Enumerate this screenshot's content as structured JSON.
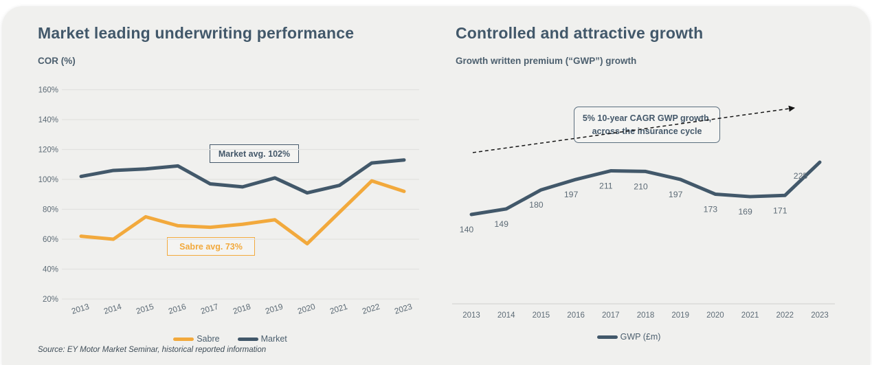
{
  "colors": {
    "slate": "#42586a",
    "yellow": "#f2a93c",
    "panel_bg": "#f0f0ee",
    "grid": "#e1e1df",
    "axis": "#dbdbd9",
    "tick_label": "#5d6b76",
    "arrow": "#141414"
  },
  "left": {
    "title": "Market leading underwriting performance",
    "subtitle": "COR (%)",
    "annotations": {
      "market": "Market avg. 102%",
      "sabre": "Sabre avg. 73%"
    },
    "legend": [
      {
        "label": "Sabre",
        "color": "#f2a93c"
      },
      {
        "label": "Market",
        "color": "#42586a"
      }
    ],
    "source": "Source: EY Motor Market Seminar, historical reported information"
  },
  "right": {
    "title": "Controlled and attractive growth",
    "subtitle": "Growth written premium (“GWP”) growth",
    "annotation_line1": "5% 10-year CAGR GWP growth,",
    "annotation_line2": "across the insurance cycle",
    "legend": [
      {
        "label": "GWP (£m)",
        "color": "#42586a"
      }
    ]
  },
  "chart_data": [
    {
      "type": "line",
      "title": "Market leading underwriting performance",
      "ylabel": "COR (%)",
      "categories": [
        "2013",
        "2014",
        "2015",
        "2016",
        "2017",
        "2018",
        "2019",
        "2020",
        "2021",
        "2022",
        "2023"
      ],
      "series": [
        {
          "name": "Sabre",
          "color": "#f2a93c",
          "values": [
            62,
            60,
            75,
            69,
            68,
            70,
            73,
            57,
            78,
            99,
            92
          ]
        },
        {
          "name": "Market",
          "color": "#42586a",
          "values": [
            102,
            106,
            107,
            109,
            97,
            95,
            101,
            91,
            96,
            111,
            113
          ]
        }
      ],
      "ylim": [
        20,
        160
      ],
      "yticks": [
        160,
        140,
        120,
        100,
        80,
        60,
        40,
        20
      ],
      "ytick_suffix": "%",
      "grid": true,
      "legend_position": "bottom",
      "annotations": [
        "Market avg. 102%",
        "Sabre avg. 73%"
      ]
    },
    {
      "type": "line",
      "title": "Controlled and attractive growth",
      "ylabel": "GWP (£m)",
      "categories": [
        "2013",
        "2014",
        "2015",
        "2016",
        "2017",
        "2018",
        "2019",
        "2020",
        "2021",
        "2022",
        "2023"
      ],
      "series": [
        {
          "name": "GWP (£m)",
          "color": "#42586a",
          "values": [
            140,
            149,
            180,
            197,
            211,
            210,
            197,
            173,
            169,
            171,
            225
          ]
        }
      ],
      "data_labels": true,
      "grid": false,
      "legend_position": "bottom",
      "annotations": [
        "5% 10-year CAGR GWP growth, across the insurance cycle"
      ]
    }
  ]
}
